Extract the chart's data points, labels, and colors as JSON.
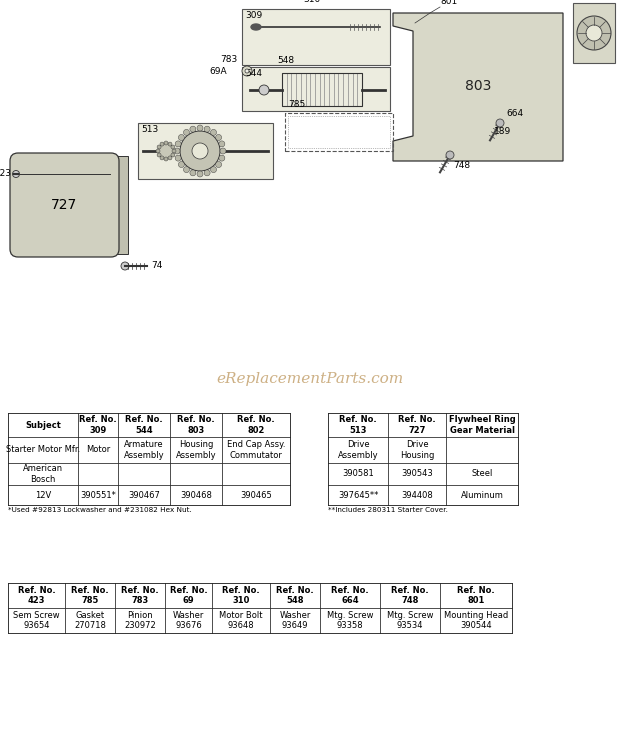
{
  "watermark": "eReplacementParts.com",
  "watermark_color": "#c8a878",
  "bg_color": "#ffffff",
  "table1_headers": [
    "Subject",
    "Ref. No.\n309",
    "Ref. No.\n544",
    "Ref. No.\n803",
    "Ref. No.\n802"
  ],
  "table1_rows": [
    [
      "Starter Motor Mfr.",
      "Motor",
      "Armature\nAssembly",
      "Housing\nAssembly",
      "End Cap Assy.\nCommutator"
    ],
    [
      "American\nBosch",
      "",
      "",
      "",
      ""
    ],
    [
      "12V",
      "390551*",
      "390467",
      "390468",
      "390465"
    ]
  ],
  "table1_note": "*Used #92813 Lockwasher and #231082 Hex Nut.",
  "table2_headers": [
    "Ref. No.\n513",
    "Ref. No.\n727",
    "Flywheel Ring\nGear Material"
  ],
  "table2_rows": [
    [
      "Drive\nAssembly",
      "Drive\nHousing",
      ""
    ],
    [
      "390581",
      "390543",
      "Steel"
    ],
    [
      "397645**",
      "394408",
      "Aluminum"
    ]
  ],
  "table2_note": "**Includes 280311 Starter Cover.",
  "table3_headers": [
    "Ref. No.\n423",
    "Ref. No.\n785",
    "Ref. No.\n783",
    "Ref. No.\n69",
    "Ref. No.\n310",
    "Ref. No.\n548",
    "Ref. No.\n664",
    "Ref. No.\n748",
    "Ref. No.\n801"
  ],
  "table3_rows": [
    [
      "Sem Screw\n93654",
      "Gasket\n270718",
      "Pinion\n230972",
      "Washer\n93676",
      "Motor Bolt\n93648",
      "Washer\n93649",
      "Mtg. Screw\n93358",
      "Mtg. Screw\n93534",
      "Mounting Head\n390544"
    ]
  ]
}
